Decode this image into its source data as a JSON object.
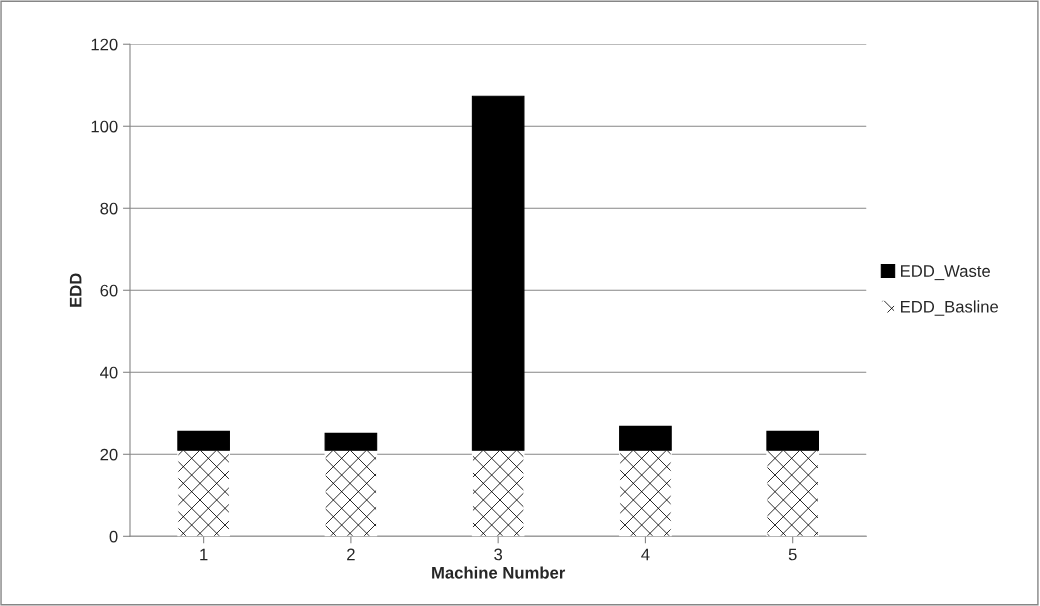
{
  "chart_data": {
    "type": "bar",
    "stacked": true,
    "xlabel": "Machine Number",
    "ylabel": "EDD",
    "categories": [
      "1",
      "2",
      "3",
      "4",
      "5"
    ],
    "series": [
      {
        "name": "EDD_Basline",
        "color": "#ffffff",
        "values": [
          21,
          21,
          21,
          21,
          21
        ]
      },
      {
        "name": "EDD_Waste",
        "color": "#000000",
        "values": [
          4.6,
          4.1,
          86.3,
          5.8,
          4.6
        ]
      }
    ],
    "ylim": [
      0,
      120
    ],
    "yticks": [
      0,
      20,
      40,
      60,
      80,
      100,
      120
    ],
    "grid": "y",
    "legend": "right"
  }
}
